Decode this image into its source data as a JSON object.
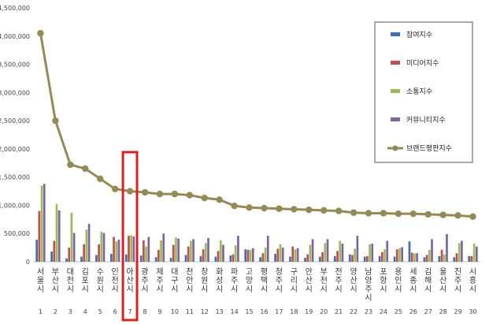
{
  "chart_data": {
    "type": "bar",
    "title": "",
    "xlabel": "",
    "ylabel": "",
    "ylim": [
      0,
      4500000
    ],
    "yticks": [
      "0",
      "500,000",
      "1,000,000",
      "1,500,000",
      "2,000,000",
      "2,500,000",
      "3,000,000",
      "3,500,000",
      "4,000,000",
      "4,500,000"
    ],
    "grid": false,
    "legend_position": "right",
    "categories": [
      "서울시",
      "부산시",
      "대전시",
      "김포시",
      "수원시",
      "인천시",
      "아산시",
      "광주시",
      "제주시",
      "대구시",
      "천안시",
      "창원시",
      "화성시",
      "파주시",
      "고양시",
      "평택시",
      "청주시",
      "구리시",
      "안산시",
      "부천시",
      "전주시",
      "양산시",
      "남양주시",
      "포항시",
      "용인시",
      "세종시",
      "김해시",
      "울산시",
      "진주시",
      "시흥시"
    ],
    "numbers": [
      "1",
      "2",
      "3",
      "4",
      "5",
      "6",
      "7",
      "8",
      "9",
      "10",
      "11",
      "12",
      "13",
      "14",
      "15",
      "16",
      "17",
      "18",
      "19",
      "20",
      "21",
      "22",
      "23",
      "24",
      "25",
      "26",
      "27",
      "28",
      "29",
      "30"
    ],
    "highlight_index": 6,
    "highlight_color": "#e02020",
    "series": [
      {
        "name": "참여지수",
        "kind": "bar",
        "color": "#3f6fb6",
        "values": [
          390000,
          180000,
          60000,
          90000,
          120000,
          140000,
          130000,
          110000,
          80000,
          70000,
          120000,
          100000,
          90000,
          110000,
          220000,
          80000,
          140000,
          90000,
          70000,
          90000,
          100000,
          130000,
          90000,
          100000,
          90000,
          360000,
          80000,
          100000,
          80000,
          100000
        ]
      },
      {
        "name": "미디어지수",
        "kind": "bar",
        "color": "#c0504d",
        "values": [
          900000,
          370000,
          250000,
          310000,
          310000,
          440000,
          460000,
          380000,
          210000,
          300000,
          270000,
          220000,
          190000,
          130000,
          210000,
          150000,
          230000,
          270000,
          130000,
          170000,
          190000,
          120000,
          100000,
          170000,
          220000,
          160000,
          120000,
          210000,
          150000,
          100000
        ]
      },
      {
        "name": "소통지수",
        "kind": "bar",
        "color": "#9bbb59",
        "values": [
          1350000,
          1020000,
          870000,
          570000,
          530000,
          360000,
          470000,
          270000,
          380000,
          430000,
          370000,
          330000,
          380000,
          290000,
          210000,
          250000,
          310000,
          220000,
          300000,
          330000,
          370000,
          230000,
          310000,
          220000,
          240000,
          150000,
          210000,
          130000,
          330000,
          320000
        ]
      },
      {
        "name": "커뮤니티지수",
        "kind": "bar",
        "color": "#8064a2",
        "values": [
          1380000,
          910000,
          510000,
          670000,
          510000,
          390000,
          450000,
          440000,
          500000,
          410000,
          400000,
          420000,
          300000,
          460000,
          240000,
          460000,
          250000,
          240000,
          400000,
          400000,
          320000,
          460000,
          320000,
          370000,
          260000,
          150000,
          400000,
          490000,
          370000,
          270000
        ]
      },
      {
        "name": "브랜드평판지수",
        "kind": "line",
        "color": "#948a54",
        "values": [
          4050000,
          2500000,
          1720000,
          1650000,
          1470000,
          1290000,
          1250000,
          1230000,
          1200000,
          1200000,
          1180000,
          1130000,
          1100000,
          990000,
          960000,
          950000,
          940000,
          930000,
          920000,
          910000,
          900000,
          870000,
          860000,
          860000,
          850000,
          850000,
          840000,
          830000,
          820000,
          800000
        ]
      }
    ]
  }
}
